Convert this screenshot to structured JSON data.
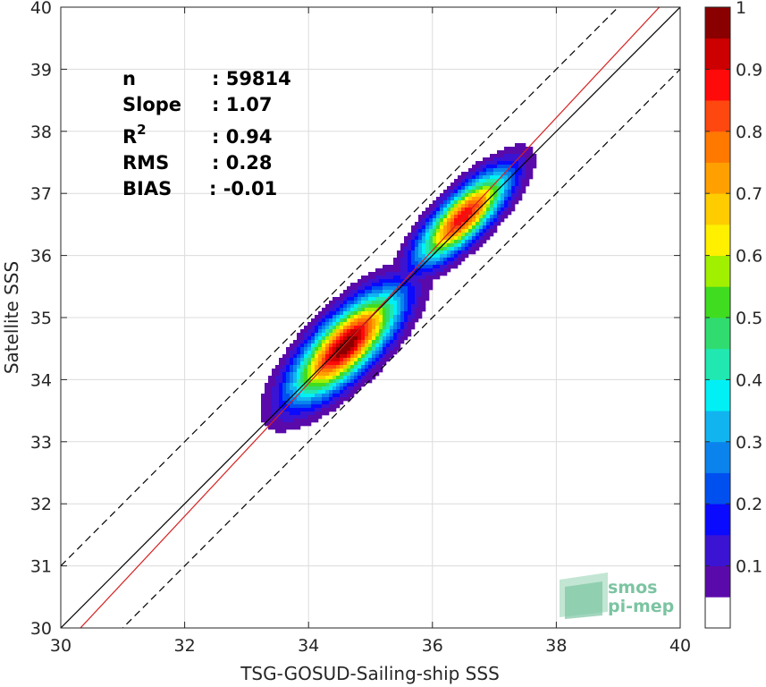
{
  "chart_data": {
    "type": "scatter",
    "subtype": "density-contour",
    "xlabel": "TSG-GOSUD-Sailing-ship SSS",
    "ylabel": "Satellite SSS",
    "xlim": [
      30,
      40
    ],
    "ylim": [
      30,
      40
    ],
    "xticks": [
      "30",
      "32",
      "34",
      "36",
      "38",
      "40"
    ],
    "yticks": [
      "30",
      "31",
      "32",
      "33",
      "34",
      "35",
      "36",
      "37",
      "38",
      "39",
      "40"
    ],
    "grid": true,
    "stats": [
      {
        "label": "n",
        "value": ": 59814"
      },
      {
        "label": "Slope",
        "value": ": 1.07"
      },
      {
        "label": "R",
        "sup": "2",
        "value": ": 0.94"
      },
      {
        "label": "RMS",
        "value": ": 0.28"
      },
      {
        "label": "BIAS",
        "value": ": -0.01"
      }
    ],
    "lines": [
      {
        "kind": "one-to-one",
        "color": "#000000",
        "style": "solid",
        "slope": 1,
        "intercept": 0
      },
      {
        "kind": "one-to-one-plus-1",
        "color": "#000000",
        "style": "dashed",
        "slope": 1,
        "intercept": 1
      },
      {
        "kind": "one-to-one-minus-1",
        "color": "#000000",
        "style": "dashed",
        "slope": 1,
        "intercept": -1
      },
      {
        "kind": "regression",
        "color": "#d62020",
        "style": "solid",
        "slope": 1.07,
        "intercept": -2.44
      }
    ],
    "density_clusters": [
      {
        "center_x": 34.6,
        "center_y": 34.55,
        "peak": 1.0,
        "spread_along": 0.75,
        "spread_across": 0.28,
        "ext_x": [
          33.7,
          35.2
        ],
        "ext_y": [
          33.2,
          35.1
        ]
      },
      {
        "center_x": 36.5,
        "center_y": 36.62,
        "peak": 0.9,
        "spread_along": 0.65,
        "spread_across": 0.22,
        "ext_x": [
          35.5,
          37.0
        ],
        "ext_y": [
          35.6,
          37.25
        ]
      }
    ],
    "colorbar": {
      "range": [
        0,
        1
      ],
      "ticks": [
        "0.1",
        "0.2",
        "0.3",
        "0.4",
        "0.5",
        "0.6",
        "0.7",
        "0.8",
        "0.9",
        "1"
      ],
      "colors": [
        "#ffffff",
        "#5a0aaa",
        "#3a14d2",
        "#0a0aff",
        "#0050f0",
        "#0a84ec",
        "#12b4f0",
        "#00f0f5",
        "#20e8b0",
        "#30dc70",
        "#40dc20",
        "#a0f000",
        "#fff000",
        "#ffcc00",
        "#ffa000",
        "#ff7800",
        "#ff4810",
        "#ff0a0a",
        "#cc0000",
        "#8a0000"
      ]
    }
  },
  "logo": {
    "line1": "smos",
    "line2": "pi-mep"
  }
}
